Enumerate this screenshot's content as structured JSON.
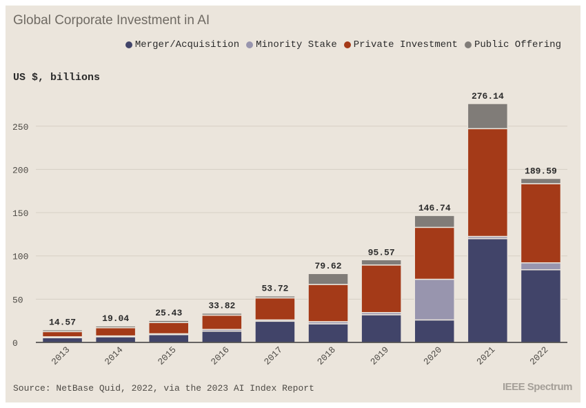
{
  "title": "Global Corporate Investment in AI",
  "units_label": "US $, billions",
  "source": "Source: NetBase Quid, 2022, via the 2023 AI Index Report",
  "brand": "IEEE Spectrum",
  "legend": [
    {
      "label": "Merger/Acquisition",
      "color": "#414469"
    },
    {
      "label": "Minority Stake",
      "color": "#9895ae"
    },
    {
      "label": "Private Investment",
      "color": "#a43a18"
    },
    {
      "label": "Public Offering",
      "color": "#807c78"
    }
  ],
  "chart_data": {
    "type": "bar",
    "stacked": true,
    "title": "Global Corporate Investment in AI",
    "ylabel": "US $, billions",
    "xlabel": "",
    "ylim": [
      0,
      280
    ],
    "yticks": [
      0,
      50,
      100,
      150,
      200,
      250
    ],
    "grid": true,
    "legend_position": "top-right",
    "categories": [
      "2013",
      "2014",
      "2015",
      "2016",
      "2017",
      "2018",
      "2019",
      "2020",
      "2021",
      "2022"
    ],
    "series": [
      {
        "name": "Merger/Acquisition",
        "color": "#414469",
        "values": [
          5.5,
          6.5,
          9.0,
          13.0,
          24.5,
          21.5,
          32.0,
          26.0,
          120.0,
          84.0
        ]
      },
      {
        "name": "Minority Stake",
        "color": "#9895ae",
        "values": [
          1.0,
          1.0,
          1.0,
          2.0,
          1.5,
          2.5,
          2.5,
          47.0,
          2.5,
          8.0
        ]
      },
      {
        "name": "Private Investment",
        "color": "#a43a18",
        "values": [
          6.0,
          9.5,
          13.0,
          16.5,
          25.5,
          43.0,
          55.0,
          60.0,
          124.64,
          91.5
        ]
      },
      {
        "name": "Public Offering",
        "color": "#807c78",
        "values": [
          2.07,
          2.04,
          2.43,
          2.32,
          2.22,
          12.62,
          6.07,
          13.74,
          29.0,
          6.09
        ]
      }
    ],
    "totals": [
      "14.57",
      "19.04",
      "25.43",
      "33.82",
      "53.72",
      "79.62",
      "95.57",
      "146.74",
      "276.14",
      "189.59"
    ]
  }
}
